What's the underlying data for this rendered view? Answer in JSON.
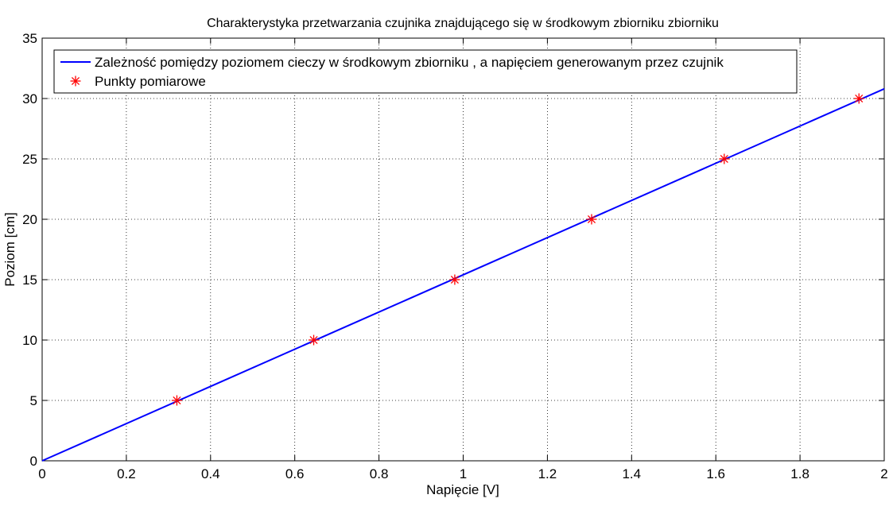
{
  "chart_data": {
    "type": "line",
    "title": "Charakterystyka przetwarzania czujnika znajdującego się w środkowym zbiorniku zbiorniku",
    "xlabel": "Napięcie [V]",
    "ylabel": "Poziom [cm]",
    "xlim": [
      0,
      2
    ],
    "ylim": [
      0,
      35
    ],
    "xticks": [
      0,
      0.2,
      0.4,
      0.6,
      0.8,
      1,
      1.2,
      1.4,
      1.6,
      1.8,
      2
    ],
    "xtick_labels": [
      "0",
      "0.2",
      "0.4",
      "0.6",
      "0.8",
      "1",
      "1.2",
      "1.4",
      "1.6",
      "1.8",
      "2"
    ],
    "yticks": [
      0,
      5,
      10,
      15,
      20,
      25,
      30,
      35
    ],
    "ytick_labels": [
      "0",
      "5",
      "10",
      "15",
      "20",
      "25",
      "30",
      "35"
    ],
    "grid": true,
    "legend_position": "top-left",
    "series": [
      {
        "name": "Zależność pomiędzy poziomem cieczy w środkowym zbiorniku , a napięciem generowanym przez czujnik",
        "kind": "line",
        "color": "#0000ff",
        "x": [
          0,
          2
        ],
        "y": [
          0,
          30.8
        ]
      },
      {
        "name": "Punkty pomiarowe",
        "kind": "marker",
        "marker": "asterisk",
        "color": "#ff0000",
        "x": [
          0.32,
          0.645,
          0.98,
          1.305,
          1.62,
          1.94
        ],
        "y": [
          5,
          10,
          15,
          20,
          25,
          30
        ]
      }
    ]
  }
}
